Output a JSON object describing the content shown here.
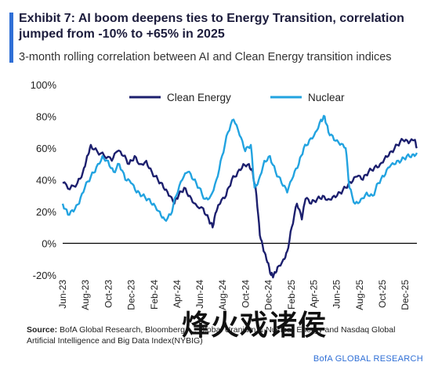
{
  "header": {
    "title": "Exhibit 7: AI boom deepens ties to Energy Transition, correlation jumped from -10% to +65% in 2025",
    "subtitle": "3-month rolling correlation between AI and Clean Energy transition indices",
    "accent_color": "#2f6fd6"
  },
  "footer": {
    "source_label": "Source:",
    "source_text": " BofA Global Research, Bloomberg, ... Global Uranium & Nuclear Energy and Nasdaq Global Artificial Intelligence and Big Data Index(NYBIG)",
    "credit": "BofA GLOBAL RESEARCH",
    "watermark": "烽火戏诸侯"
  },
  "chart_data": {
    "type": "line",
    "ylim": [
      -20,
      100
    ],
    "yticks": [
      -20,
      0,
      20,
      40,
      60,
      80,
      100
    ],
    "ytick_labels": [
      "-20%",
      "0%",
      "20%",
      "40%",
      "60%",
      "80%",
      "100%"
    ],
    "xlim": [
      "2023-06",
      "2026-01"
    ],
    "x_tick_labels": [
      "Jun-23",
      "Aug-23",
      "Oct-23",
      "Dec-23",
      "Feb-24",
      "Apr-24",
      "Jun-24",
      "Aug-24",
      "Oct-24",
      "Dec-24",
      "Feb-25",
      "Apr-25",
      "Jun-25",
      "Aug-25",
      "Oct-25",
      "Dec-25"
    ],
    "legend_position": "top",
    "grid": false,
    "series": [
      {
        "name": "Clean Energy",
        "color": "#1c1f6e",
        "points": [
          [
            "2023-06-01",
            38
          ],
          [
            "2023-06-20",
            34
          ],
          [
            "2023-07-10",
            38
          ],
          [
            "2023-07-25",
            45
          ],
          [
            "2023-08-05",
            55
          ],
          [
            "2023-08-15",
            62
          ],
          [
            "2023-09-01",
            58
          ],
          [
            "2023-09-20",
            55
          ],
          [
            "2023-10-10",
            52
          ],
          [
            "2023-10-25",
            58
          ],
          [
            "2023-11-10",
            55
          ],
          [
            "2023-11-25",
            50
          ],
          [
            "2023-12-10",
            55
          ],
          [
            "2023-12-25",
            50
          ],
          [
            "2024-01-10",
            52
          ],
          [
            "2024-01-25",
            45
          ],
          [
            "2024-02-10",
            40
          ],
          [
            "2024-02-25",
            35
          ],
          [
            "2024-03-10",
            30
          ],
          [
            "2024-03-25",
            25
          ],
          [
            "2024-04-05",
            30
          ],
          [
            "2024-04-20",
            35
          ],
          [
            "2024-05-05",
            30
          ],
          [
            "2024-05-20",
            25
          ],
          [
            "2024-06-10",
            22
          ],
          [
            "2024-06-25",
            15
          ],
          [
            "2024-07-05",
            10
          ],
          [
            "2024-07-15",
            20
          ],
          [
            "2024-07-25",
            25
          ],
          [
            "2024-08-10",
            30
          ],
          [
            "2024-08-25",
            40
          ],
          [
            "2024-09-10",
            45
          ],
          [
            "2024-09-25",
            50
          ],
          [
            "2024-10-10",
            50
          ],
          [
            "2024-10-20",
            45
          ],
          [
            "2024-10-30",
            30
          ],
          [
            "2024-11-08",
            5
          ],
          [
            "2024-11-18",
            -5
          ],
          [
            "2024-11-28",
            -12
          ],
          [
            "2024-12-08",
            -20
          ],
          [
            "2024-12-15",
            -20
          ],
          [
            "2024-12-25",
            -15
          ],
          [
            "2025-01-10",
            -10
          ],
          [
            "2025-01-20",
            -5
          ],
          [
            "2025-02-01",
            10
          ],
          [
            "2025-02-15",
            25
          ],
          [
            "2025-02-28",
            15
          ],
          [
            "2025-03-10",
            28
          ],
          [
            "2025-03-25",
            25
          ],
          [
            "2025-04-10",
            28
          ],
          [
            "2025-04-25",
            30
          ],
          [
            "2025-05-10",
            28
          ],
          [
            "2025-05-25",
            30
          ],
          [
            "2025-06-10",
            32
          ],
          [
            "2025-06-25",
            35
          ],
          [
            "2025-07-10",
            38
          ],
          [
            "2025-07-25",
            42
          ],
          [
            "2025-08-10",
            40
          ],
          [
            "2025-08-25",
            45
          ],
          [
            "2025-09-10",
            48
          ],
          [
            "2025-09-25",
            50
          ],
          [
            "2025-10-10",
            55
          ],
          [
            "2025-10-25",
            58
          ],
          [
            "2025-11-10",
            62
          ],
          [
            "2025-11-25",
            65
          ],
          [
            "2025-12-10",
            63
          ],
          [
            "2025-12-25",
            65
          ],
          [
            "2026-01-01",
            60
          ]
        ]
      },
      {
        "name": "Nuclear",
        "color": "#22a3e0",
        "points": [
          [
            "2023-06-01",
            25
          ],
          [
            "2023-06-15",
            18
          ],
          [
            "2023-06-30",
            20
          ],
          [
            "2023-07-15",
            25
          ],
          [
            "2023-07-30",
            35
          ],
          [
            "2023-08-15",
            42
          ],
          [
            "2023-08-30",
            48
          ],
          [
            "2023-09-15",
            55
          ],
          [
            "2023-09-30",
            52
          ],
          [
            "2023-10-15",
            45
          ],
          [
            "2023-10-30",
            50
          ],
          [
            "2023-11-15",
            40
          ],
          [
            "2023-11-30",
            38
          ],
          [
            "2023-12-15",
            32
          ],
          [
            "2023-12-30",
            30
          ],
          [
            "2024-01-15",
            28
          ],
          [
            "2024-01-30",
            25
          ],
          [
            "2024-02-15",
            20
          ],
          [
            "2024-02-28",
            15
          ],
          [
            "2024-03-15",
            18
          ],
          [
            "2024-03-30",
            30
          ],
          [
            "2024-04-15",
            40
          ],
          [
            "2024-04-30",
            45
          ],
          [
            "2024-05-15",
            40
          ],
          [
            "2024-05-30",
            35
          ],
          [
            "2024-06-15",
            28
          ],
          [
            "2024-06-30",
            30
          ],
          [
            "2024-07-15",
            40
          ],
          [
            "2024-07-30",
            55
          ],
          [
            "2024-08-15",
            70
          ],
          [
            "2024-08-30",
            78
          ],
          [
            "2024-09-15",
            68
          ],
          [
            "2024-09-30",
            58
          ],
          [
            "2024-10-15",
            62
          ],
          [
            "2024-10-25",
            35
          ],
          [
            "2024-11-05",
            40
          ],
          [
            "2024-11-20",
            52
          ],
          [
            "2024-12-05",
            55
          ],
          [
            "2024-12-20",
            45
          ],
          [
            "2025-01-05",
            38
          ],
          [
            "2025-01-20",
            32
          ],
          [
            "2025-02-05",
            42
          ],
          [
            "2025-02-20",
            50
          ],
          [
            "2025-03-05",
            60
          ],
          [
            "2025-03-20",
            65
          ],
          [
            "2025-04-05",
            70
          ],
          [
            "2025-04-20",
            78
          ],
          [
            "2025-04-30",
            80
          ],
          [
            "2025-05-10",
            70
          ],
          [
            "2025-05-25",
            65
          ],
          [
            "2025-06-10",
            62
          ],
          [
            "2025-06-25",
            60
          ],
          [
            "2025-07-05",
            35
          ],
          [
            "2025-07-20",
            25
          ],
          [
            "2025-08-05",
            28
          ],
          [
            "2025-08-20",
            32
          ],
          [
            "2025-09-05",
            30
          ],
          [
            "2025-09-20",
            38
          ],
          [
            "2025-10-05",
            42
          ],
          [
            "2025-10-20",
            48
          ],
          [
            "2025-11-05",
            50
          ],
          [
            "2025-11-20",
            52
          ],
          [
            "2025-12-05",
            55
          ],
          [
            "2025-12-20",
            56
          ],
          [
            "2026-01-01",
            57
          ]
        ]
      }
    ]
  }
}
